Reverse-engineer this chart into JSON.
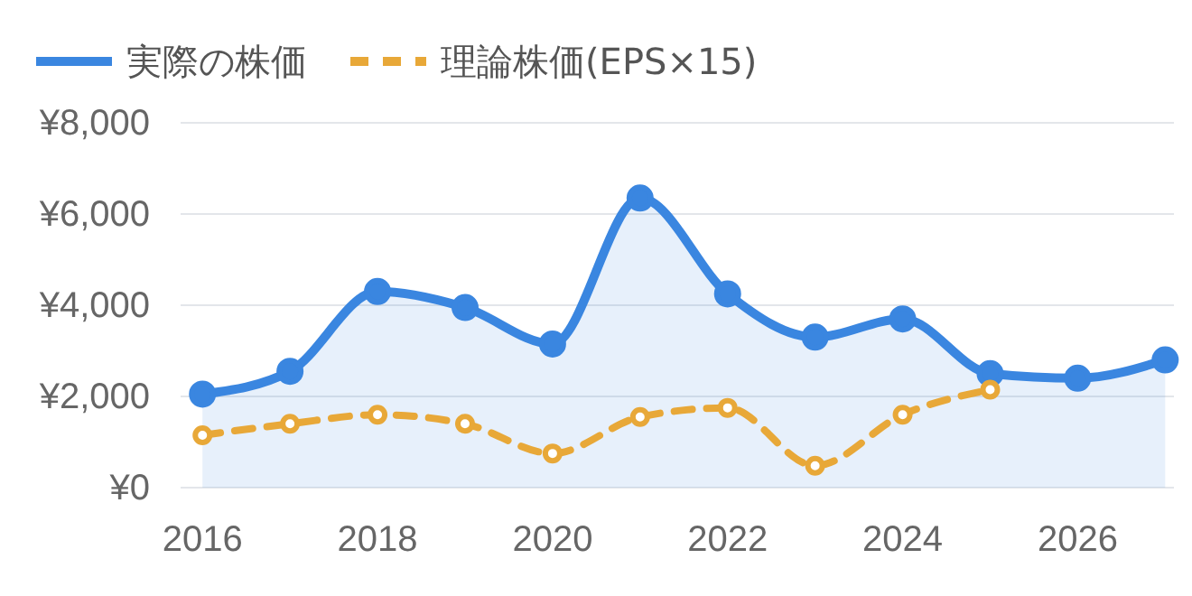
{
  "chart_data": {
    "type": "line",
    "x": [
      2016,
      2017,
      2018,
      2019,
      2020,
      2021,
      2022,
      2023,
      2024,
      2025,
      2026,
      2027
    ],
    "series": [
      {
        "name": "実際の株価",
        "color": "#3a86e0",
        "type": "area",
        "values": [
          2050,
          2550,
          4300,
          3950,
          3150,
          6350,
          4250,
          3300,
          3700,
          2500,
          2400,
          2800
        ]
      },
      {
        "name": "理論株価(EPS×15)",
        "color": "#e8a838",
        "line_style": "dashed",
        "values": [
          1150,
          1400,
          1600,
          1400,
          750,
          1550,
          1750,
          480,
          1600,
          2150,
          null,
          null
        ]
      }
    ],
    "xlim": [
      2015.75,
      2027.1
    ],
    "xticks": [
      2016,
      2018,
      2020,
      2022,
      2024,
      2026
    ],
    "ylim": [
      0,
      8000
    ],
    "yticks": [
      {
        "value": 0,
        "label": "¥0"
      },
      {
        "value": 2000,
        "label": "¥2,000"
      },
      {
        "value": 4000,
        "label": "¥4,000"
      },
      {
        "value": 6000,
        "label": "¥6,000"
      },
      {
        "value": 8000,
        "label": "¥8,000"
      }
    ],
    "grid": "y",
    "legend": "top left",
    "marker": "circle"
  }
}
